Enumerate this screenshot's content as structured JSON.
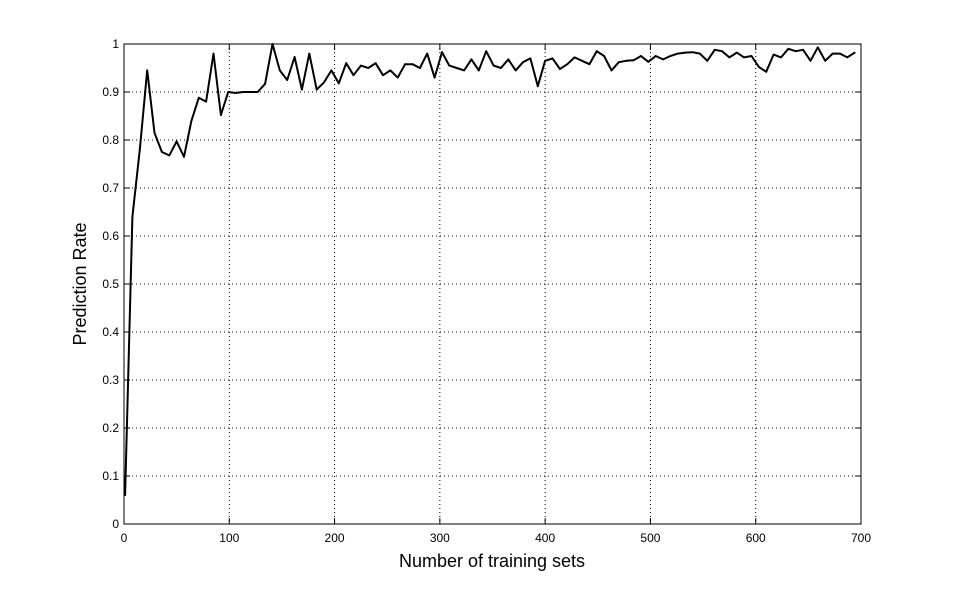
{
  "chart_data": {
    "type": "line",
    "title": "",
    "xlabel": "Number of training sets",
    "ylabel": "Prediction Rate",
    "xlim": [
      0,
      700
    ],
    "ylim": [
      0,
      1
    ],
    "xticks": [
      0,
      100,
      200,
      300,
      400,
      500,
      600,
      700
    ],
    "yticks": [
      0,
      0.1,
      0.2,
      0.3,
      0.4,
      0.5,
      0.6,
      0.7,
      0.8,
      0.9,
      1
    ],
    "xtick_labels": [
      "0",
      "100",
      "200",
      "300",
      "400",
      "500",
      "600",
      "700"
    ],
    "ytick_labels": [
      "0",
      "0.1",
      "0.2",
      "0.3",
      "0.4",
      "0.5",
      "0.6",
      "0.7",
      "0.8",
      "0.9",
      "1"
    ],
    "grid": true,
    "series_color": "#000000",
    "series": [
      {
        "x": [
          1,
          8,
          15,
          22,
          29,
          36,
          43,
          50,
          57,
          64,
          71,
          78,
          85,
          92,
          99,
          106,
          113,
          120,
          127,
          134,
          141,
          148,
          155,
          162,
          169,
          176,
          183,
          190,
          197,
          204,
          211,
          218,
          225,
          232,
          239,
          246,
          253,
          260,
          267,
          274,
          281,
          288,
          295,
          302,
          309,
          316,
          323,
          330,
          337,
          344,
          351,
          358,
          365,
          372,
          379,
          386,
          393,
          400,
          407,
          414,
          421,
          428,
          435,
          442,
          449,
          456,
          463,
          470,
          477,
          484,
          491,
          498,
          505,
          512,
          519,
          526,
          533,
          540,
          547,
          554,
          561,
          568,
          575,
          582,
          589,
          596,
          603,
          610,
          617,
          624,
          631,
          638,
          645,
          652,
          659,
          666,
          673,
          680,
          687,
          694
        ],
        "y": [
          0.06,
          0.64,
          0.78,
          0.945,
          0.815,
          0.775,
          0.768,
          0.797,
          0.765,
          0.84,
          0.888,
          0.88,
          0.98,
          0.852,
          0.9,
          0.898,
          0.9,
          0.9,
          0.9,
          0.917,
          1.0,
          0.945,
          0.925,
          0.973,
          0.905,
          0.98,
          0.905,
          0.92,
          0.945,
          0.918,
          0.96,
          0.935,
          0.955,
          0.95,
          0.96,
          0.935,
          0.945,
          0.93,
          0.958,
          0.958,
          0.95,
          0.98,
          0.93,
          0.983,
          0.955,
          0.95,
          0.945,
          0.968,
          0.945,
          0.985,
          0.955,
          0.95,
          0.968,
          0.945,
          0.962,
          0.97,
          0.912,
          0.965,
          0.97,
          0.948,
          0.958,
          0.972,
          0.965,
          0.958,
          0.985,
          0.975,
          0.945,
          0.962,
          0.965,
          0.966,
          0.975,
          0.963,
          0.975,
          0.968,
          0.975,
          0.98,
          0.982,
          0.983,
          0.98,
          0.965,
          0.988,
          0.985,
          0.972,
          0.982,
          0.972,
          0.975,
          0.952,
          0.942,
          0.978,
          0.972,
          0.99,
          0.985,
          0.988,
          0.965,
          0.993,
          0.965,
          0.98,
          0.98,
          0.972,
          0.982
        ]
      }
    ]
  }
}
